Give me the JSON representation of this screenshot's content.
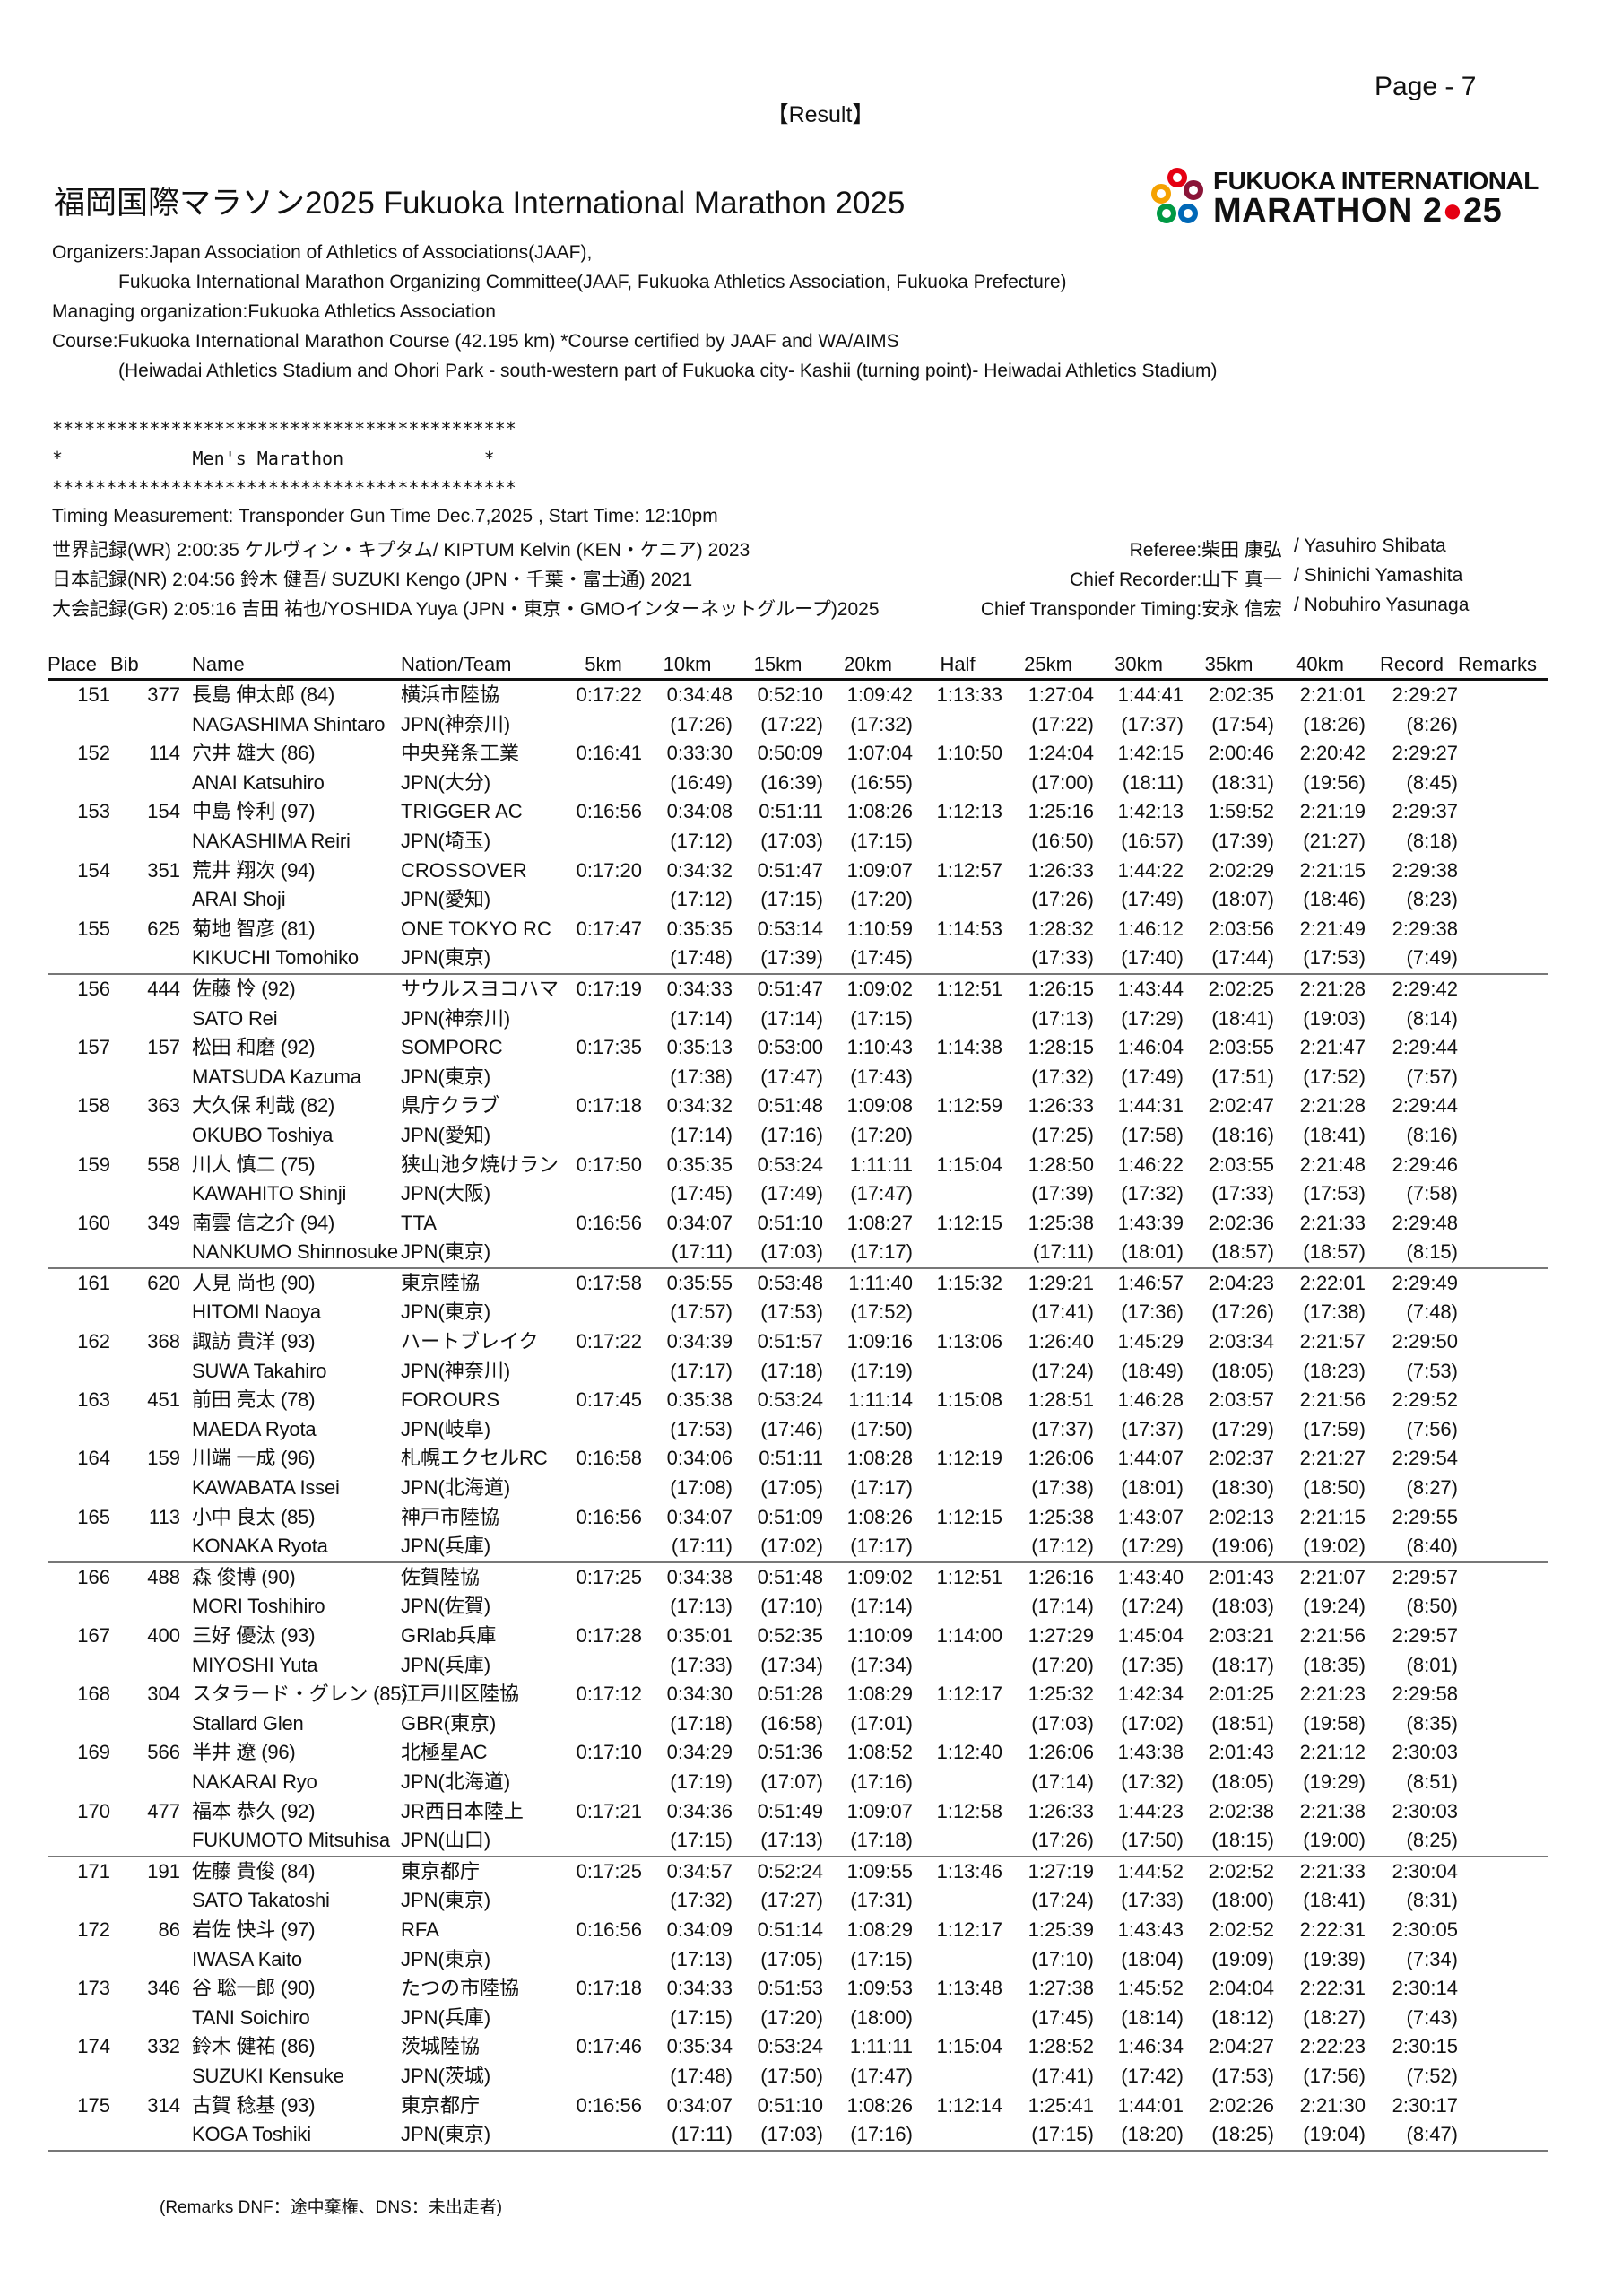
{
  "page": "Page - 7",
  "heading": "【Result】",
  "title": "福岡国際マラソン2025  Fukuoka International Marathon 2025",
  "logo": {
    "line1": "FUKUOKA INTERNATIONAL",
    "line2_a": "MARATHON 2",
    "line2_b": "25",
    "colors": [
      "#e50012",
      "#f5a100",
      "#0068b7",
      "#009944",
      "#8a1538"
    ]
  },
  "info": {
    "organizers": "Organizers:Japan Association of Athletics of Associations(JAAF),",
    "organizers2": "Fukuoka International Marathon Organizing Committee(JAAF, Fukuoka Athletics Association, Fukuoka Prefecture)",
    "managing": "Managing organization:Fukuoka Athletics Association",
    "course": "Course:Fukuoka International Marathon Course (42.195 km) *Course certified by JAAF and WA/AIMS",
    "course2": "(Heiwadai Athletics Stadium and Ohori Park - south-western part of Fukuoka city- Kashii (turning point)- Heiwadai Athletics Stadium)"
  },
  "banner": {
    "stars": "*******************************************",
    "event": "*            Men's Marathon             *"
  },
  "timing": "Timing Measurement: Transponder Gun Time Dec.7,2025 , Start Time: 12:10pm",
  "records": {
    "wr": "世界記録(WR)  2:00:35  ケルヴィン・キプタム/ KIPTUM Kelvin  (KEN・ケニア)  2023",
    "nr": "日本記録(NR)  2:04:56  鈴木  健吾/ SUZUKI Kengo  (JPN・千葉・富士通)  2021",
    "gr": "大会記録(GR)  2:05:16  吉田  祐也/YOSHIDA Yuya (JPN・東京・GMOインターネットグループ)2025"
  },
  "officials": [
    {
      "role": "Referee:柴田  康弘",
      "name": "/ Yasuhiro Shibata"
    },
    {
      "role": "Chief Recorder:山下  真一",
      "name": "/ Shinichi Yamashita"
    },
    {
      "role": "Chief Transponder Timing:安永  信宏",
      "name": "/ Nobuhiro Yasunaga"
    }
  ],
  "columns": [
    "Place",
    "Bib",
    "Name",
    "Nation/Team",
    "5km",
    "10km",
    "15km",
    "20km",
    "Half",
    "25km",
    "30km",
    "35km",
    "40km",
    "Record",
    "Remarks"
  ],
  "rows": [
    {
      "place": "151",
      "bib": "377",
      "name": "長島  伸太郎 (84)",
      "name_en": "NAGASHIMA Shintaro",
      "team": "横浜市陸協",
      "nation": "JPN(神奈川)",
      "times": [
        "0:17:22",
        "0:34:48",
        "0:52:10",
        "1:09:42",
        "1:13:33",
        "1:27:04",
        "1:44:41",
        "2:02:35",
        "2:21:01",
        "2:29:27"
      ],
      "splits": [
        "(17:26)",
        "(17:22)",
        "(17:32)",
        "(17:22)",
        "(17:37)",
        "(17:54)",
        "(18:26)",
        "(8:26)"
      ]
    },
    {
      "place": "152",
      "bib": "114",
      "name": "穴井  雄大 (86)",
      "name_en": "ANAI Katsuhiro",
      "team": "中央発条工業",
      "nation": "JPN(大分)",
      "times": [
        "0:16:41",
        "0:33:30",
        "0:50:09",
        "1:07:04",
        "1:10:50",
        "1:24:04",
        "1:42:15",
        "2:00:46",
        "2:20:42",
        "2:29:27"
      ],
      "splits": [
        "(16:49)",
        "(16:39)",
        "(16:55)",
        "(17:00)",
        "(18:11)",
        "(18:31)",
        "(19:56)",
        "(8:45)"
      ]
    },
    {
      "place": "153",
      "bib": "154",
      "name": "中島  怜利 (97)",
      "name_en": "NAKASHIMA Reiri",
      "team": "TRIGGER AC",
      "nation": "JPN(埼玉)",
      "times": [
        "0:16:56",
        "0:34:08",
        "0:51:11",
        "1:08:26",
        "1:12:13",
        "1:25:16",
        "1:42:13",
        "1:59:52",
        "2:21:19",
        "2:29:37"
      ],
      "splits": [
        "(17:12)",
        "(17:03)",
        "(17:15)",
        "(16:50)",
        "(16:57)",
        "(17:39)",
        "(21:27)",
        "(8:18)"
      ]
    },
    {
      "place": "154",
      "bib": "351",
      "name": "荒井  翔次 (94)",
      "name_en": "ARAI Shoji",
      "team": "CROSSOVER",
      "nation": "JPN(愛知)",
      "times": [
        "0:17:20",
        "0:34:32",
        "0:51:47",
        "1:09:07",
        "1:12:57",
        "1:26:33",
        "1:44:22",
        "2:02:29",
        "2:21:15",
        "2:29:38"
      ],
      "splits": [
        "(17:12)",
        "(17:15)",
        "(17:20)",
        "(17:26)",
        "(17:49)",
        "(18:07)",
        "(18:46)",
        "(8:23)"
      ]
    },
    {
      "place": "155",
      "bib": "625",
      "name": "菊地  智彦 (81)",
      "name_en": "KIKUCHI Tomohiko",
      "team": "ONE TOKYO RC",
      "nation": "JPN(東京)",
      "times": [
        "0:17:47",
        "0:35:35",
        "0:53:14",
        "1:10:59",
        "1:14:53",
        "1:28:32",
        "1:46:12",
        "2:03:56",
        "2:21:49",
        "2:29:38"
      ],
      "splits": [
        "(17:48)",
        "(17:39)",
        "(17:45)",
        "(17:33)",
        "(17:40)",
        "(17:44)",
        "(17:53)",
        "(7:49)"
      ]
    },
    {
      "place": "156",
      "bib": "444",
      "name": "佐藤  怜 (92)",
      "name_en": "SATO Rei",
      "team": "サウルスヨコハマ",
      "nation": "JPN(神奈川)",
      "times": [
        "0:17:19",
        "0:34:33",
        "0:51:47",
        "1:09:02",
        "1:12:51",
        "1:26:15",
        "1:43:44",
        "2:02:25",
        "2:21:28",
        "2:29:42"
      ],
      "splits": [
        "(17:14)",
        "(17:14)",
        "(17:15)",
        "(17:13)",
        "(17:29)",
        "(18:41)",
        "(19:03)",
        "(8:14)"
      ]
    },
    {
      "place": "157",
      "bib": "157",
      "name": "松田  和磨 (92)",
      "name_en": "MATSUDA Kazuma",
      "team": "SOMPORC",
      "nation": "JPN(東京)",
      "times": [
        "0:17:35",
        "0:35:13",
        "0:53:00",
        "1:10:43",
        "1:14:38",
        "1:28:15",
        "1:46:04",
        "2:03:55",
        "2:21:47",
        "2:29:44"
      ],
      "splits": [
        "(17:38)",
        "(17:47)",
        "(17:43)",
        "(17:32)",
        "(17:49)",
        "(17:51)",
        "(17:52)",
        "(7:57)"
      ]
    },
    {
      "place": "158",
      "bib": "363",
      "name": "大久保  利哉 (82)",
      "name_en": "OKUBO Toshiya",
      "team": "県庁クラブ",
      "nation": "JPN(愛知)",
      "times": [
        "0:17:18",
        "0:34:32",
        "0:51:48",
        "1:09:08",
        "1:12:59",
        "1:26:33",
        "1:44:31",
        "2:02:47",
        "2:21:28",
        "2:29:44"
      ],
      "splits": [
        "(17:14)",
        "(17:16)",
        "(17:20)",
        "(17:25)",
        "(17:58)",
        "(18:16)",
        "(18:41)",
        "(8:16)"
      ]
    },
    {
      "place": "159",
      "bib": "558",
      "name": "川人  慎二 (75)",
      "name_en": "KAWAHITO Shinji",
      "team": "狭山池夕焼けラン",
      "nation": "JPN(大阪)",
      "times": [
        "0:17:50",
        "0:35:35",
        "0:53:24",
        "1:11:11",
        "1:15:04",
        "1:28:50",
        "1:46:22",
        "2:03:55",
        "2:21:48",
        "2:29:46"
      ],
      "splits": [
        "(17:45)",
        "(17:49)",
        "(17:47)",
        "(17:39)",
        "(17:32)",
        "(17:33)",
        "(17:53)",
        "(7:58)"
      ]
    },
    {
      "place": "160",
      "bib": "349",
      "name": "南雲  信之介 (94)",
      "name_en": "NANKUMO Shinnosuke",
      "team": "TTA",
      "nation": "JPN(東京)",
      "times": [
        "0:16:56",
        "0:34:07",
        "0:51:10",
        "1:08:27",
        "1:12:15",
        "1:25:38",
        "1:43:39",
        "2:02:36",
        "2:21:33",
        "2:29:48"
      ],
      "splits": [
        "(17:11)",
        "(17:03)",
        "(17:17)",
        "(17:11)",
        "(18:01)",
        "(18:57)",
        "(18:57)",
        "(8:15)"
      ]
    },
    {
      "place": "161",
      "bib": "620",
      "name": "人見  尚也 (90)",
      "name_en": "HITOMI Naoya",
      "team": "東京陸協",
      "nation": "JPN(東京)",
      "times": [
        "0:17:58",
        "0:35:55",
        "0:53:48",
        "1:11:40",
        "1:15:32",
        "1:29:21",
        "1:46:57",
        "2:04:23",
        "2:22:01",
        "2:29:49"
      ],
      "splits": [
        "(17:57)",
        "(17:53)",
        "(17:52)",
        "(17:41)",
        "(17:36)",
        "(17:26)",
        "(17:38)",
        "(7:48)"
      ]
    },
    {
      "place": "162",
      "bib": "368",
      "name": "諏訪  貴洋 (93)",
      "name_en": "SUWA Takahiro",
      "team": "ハートブレイク",
      "nation": "JPN(神奈川)",
      "times": [
        "0:17:22",
        "0:34:39",
        "0:51:57",
        "1:09:16",
        "1:13:06",
        "1:26:40",
        "1:45:29",
        "2:03:34",
        "2:21:57",
        "2:29:50"
      ],
      "splits": [
        "(17:17)",
        "(17:18)",
        "(17:19)",
        "(17:24)",
        "(18:49)",
        "(18:05)",
        "(18:23)",
        "(7:53)"
      ]
    },
    {
      "place": "163",
      "bib": "451",
      "name": "前田  亮太 (78)",
      "name_en": "MAEDA Ryota",
      "team": "FOROURS",
      "nation": "JPN(岐阜)",
      "times": [
        "0:17:45",
        "0:35:38",
        "0:53:24",
        "1:11:14",
        "1:15:08",
        "1:28:51",
        "1:46:28",
        "2:03:57",
        "2:21:56",
        "2:29:52"
      ],
      "splits": [
        "(17:53)",
        "(17:46)",
        "(17:50)",
        "(17:37)",
        "(17:37)",
        "(17:29)",
        "(17:59)",
        "(7:56)"
      ]
    },
    {
      "place": "164",
      "bib": "159",
      "name": "川端  一成 (96)",
      "name_en": "KAWABATA Issei",
      "team": "札幌エクセルRC",
      "nation": "JPN(北海道)",
      "times": [
        "0:16:58",
        "0:34:06",
        "0:51:11",
        "1:08:28",
        "1:12:19",
        "1:26:06",
        "1:44:07",
        "2:02:37",
        "2:21:27",
        "2:29:54"
      ],
      "splits": [
        "(17:08)",
        "(17:05)",
        "(17:17)",
        "(17:38)",
        "(18:01)",
        "(18:30)",
        "(18:50)",
        "(8:27)"
      ]
    },
    {
      "place": "165",
      "bib": "113",
      "name": "小中  良太 (85)",
      "name_en": "KONAKA Ryota",
      "team": "神戸市陸協",
      "nation": "JPN(兵庫)",
      "times": [
        "0:16:56",
        "0:34:07",
        "0:51:09",
        "1:08:26",
        "1:12:15",
        "1:25:38",
        "1:43:07",
        "2:02:13",
        "2:21:15",
        "2:29:55"
      ],
      "splits": [
        "(17:11)",
        "(17:02)",
        "(17:17)",
        "(17:12)",
        "(17:29)",
        "(19:06)",
        "(19:02)",
        "(8:40)"
      ]
    },
    {
      "place": "166",
      "bib": "488",
      "name": "森  俊博 (90)",
      "name_en": "MORI Toshihiro",
      "team": "佐賀陸協",
      "nation": "JPN(佐賀)",
      "times": [
        "0:17:25",
        "0:34:38",
        "0:51:48",
        "1:09:02",
        "1:12:51",
        "1:26:16",
        "1:43:40",
        "2:01:43",
        "2:21:07",
        "2:29:57"
      ],
      "splits": [
        "(17:13)",
        "(17:10)",
        "(17:14)",
        "(17:14)",
        "(17:24)",
        "(18:03)",
        "(19:24)",
        "(8:50)"
      ]
    },
    {
      "place": "167",
      "bib": "400",
      "name": "三好  優汰 (93)",
      "name_en": "MIYOSHI Yuta",
      "team": "GRlab兵庫",
      "nation": "JPN(兵庫)",
      "times": [
        "0:17:28",
        "0:35:01",
        "0:52:35",
        "1:10:09",
        "1:14:00",
        "1:27:29",
        "1:45:04",
        "2:03:21",
        "2:21:56",
        "2:29:57"
      ],
      "splits": [
        "(17:33)",
        "(17:34)",
        "(17:34)",
        "(17:20)",
        "(17:35)",
        "(18:17)",
        "(18:35)",
        "(8:01)"
      ]
    },
    {
      "place": "168",
      "bib": "304",
      "name": "スタラード・グレン (85)",
      "name_en": "Stallard Glen",
      "team": "江戸川区陸協",
      "nation": "GBR(東京)",
      "times": [
        "0:17:12",
        "0:34:30",
        "0:51:28",
        "1:08:29",
        "1:12:17",
        "1:25:32",
        "1:42:34",
        "2:01:25",
        "2:21:23",
        "2:29:58"
      ],
      "splits": [
        "(17:18)",
        "(16:58)",
        "(17:01)",
        "(17:03)",
        "(17:02)",
        "(18:51)",
        "(19:58)",
        "(8:35)"
      ]
    },
    {
      "place": "169",
      "bib": "566",
      "name": "半井  遼 (96)",
      "name_en": "NAKARAI Ryo",
      "team": "北極星AC",
      "nation": "JPN(北海道)",
      "times": [
        "0:17:10",
        "0:34:29",
        "0:51:36",
        "1:08:52",
        "1:12:40",
        "1:26:06",
        "1:43:38",
        "2:01:43",
        "2:21:12",
        "2:30:03"
      ],
      "splits": [
        "(17:19)",
        "(17:07)",
        "(17:16)",
        "(17:14)",
        "(17:32)",
        "(18:05)",
        "(19:29)",
        "(8:51)"
      ]
    },
    {
      "place": "170",
      "bib": "477",
      "name": "福本  恭久 (92)",
      "name_en": "FUKUMOTO Mitsuhisa",
      "team": "JR西日本陸上",
      "nation": "JPN(山口)",
      "times": [
        "0:17:21",
        "0:34:36",
        "0:51:49",
        "1:09:07",
        "1:12:58",
        "1:26:33",
        "1:44:23",
        "2:02:38",
        "2:21:38",
        "2:30:03"
      ],
      "splits": [
        "(17:15)",
        "(17:13)",
        "(17:18)",
        "(17:26)",
        "(17:50)",
        "(18:15)",
        "(19:00)",
        "(8:25)"
      ]
    },
    {
      "place": "171",
      "bib": "191",
      "name": "佐藤  貴俊 (84)",
      "name_en": "SATO Takatoshi",
      "team": "東京都庁",
      "nation": "JPN(東京)",
      "times": [
        "0:17:25",
        "0:34:57",
        "0:52:24",
        "1:09:55",
        "1:13:46",
        "1:27:19",
        "1:44:52",
        "2:02:52",
        "2:21:33",
        "2:30:04"
      ],
      "splits": [
        "(17:32)",
        "(17:27)",
        "(17:31)",
        "(17:24)",
        "(17:33)",
        "(18:00)",
        "(18:41)",
        "(8:31)"
      ]
    },
    {
      "place": "172",
      "bib": "86",
      "name": "岩佐  快斗 (97)",
      "name_en": "IWASA Kaito",
      "team": "RFA",
      "nation": "JPN(東京)",
      "times": [
        "0:16:56",
        "0:34:09",
        "0:51:14",
        "1:08:29",
        "1:12:17",
        "1:25:39",
        "1:43:43",
        "2:02:52",
        "2:22:31",
        "2:30:05"
      ],
      "splits": [
        "(17:13)",
        "(17:05)",
        "(17:15)",
        "(17:10)",
        "(18:04)",
        "(19:09)",
        "(19:39)",
        "(7:34)"
      ]
    },
    {
      "place": "173",
      "bib": "346",
      "name": "谷  聡一郎 (90)",
      "name_en": "TANI Soichiro",
      "team": "たつの市陸協",
      "nation": "JPN(兵庫)",
      "times": [
        "0:17:18",
        "0:34:33",
        "0:51:53",
        "1:09:53",
        "1:13:48",
        "1:27:38",
        "1:45:52",
        "2:04:04",
        "2:22:31",
        "2:30:14"
      ],
      "splits": [
        "(17:15)",
        "(17:20)",
        "(18:00)",
        "(17:45)",
        "(18:14)",
        "(18:12)",
        "(18:27)",
        "(7:43)"
      ]
    },
    {
      "place": "174",
      "bib": "332",
      "name": "鈴木  健祐 (86)",
      "name_en": "SUZUKI Kensuke",
      "team": "茨城陸協",
      "nation": "JPN(茨城)",
      "times": [
        "0:17:46",
        "0:35:34",
        "0:53:24",
        "1:11:11",
        "1:15:04",
        "1:28:52",
        "1:46:34",
        "2:04:27",
        "2:22:23",
        "2:30:15"
      ],
      "splits": [
        "(17:48)",
        "(17:50)",
        "(17:47)",
        "(17:41)",
        "(17:42)",
        "(17:53)",
        "(17:56)",
        "(7:52)"
      ]
    },
    {
      "place": "175",
      "bib": "314",
      "name": "古賀  稔基 (93)",
      "name_en": "KOGA Toshiki",
      "team": "東京都庁",
      "nation": "JPN(東京)",
      "times": [
        "0:16:56",
        "0:34:07",
        "0:51:10",
        "1:08:26",
        "1:12:14",
        "1:25:41",
        "1:44:01",
        "2:02:26",
        "2:21:30",
        "2:30:17"
      ],
      "splits": [
        "(17:11)",
        "(17:03)",
        "(17:16)",
        "(17:15)",
        "(18:20)",
        "(18:25)",
        "(19:04)",
        "(8:47)"
      ]
    }
  ],
  "remarks": "(Remarks   DNF：途中棄権、DNS：未出走者)"
}
